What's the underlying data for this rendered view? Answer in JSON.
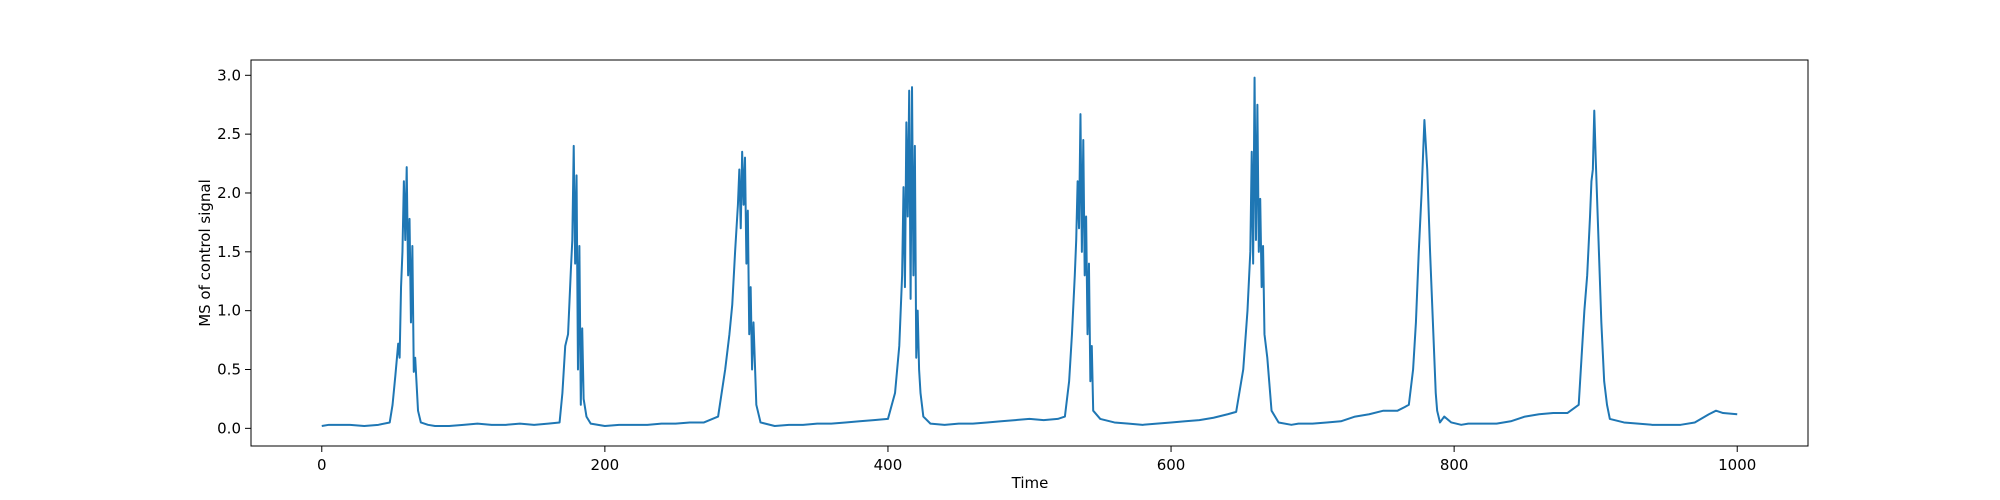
{
  "chart_data": {
    "type": "line",
    "x_label": "Time",
    "y_label": "MS of control signal",
    "color": "#1f77b4",
    "xlim": [
      -50,
      1050
    ],
    "ylim": [
      -0.15,
      3.13
    ],
    "xticks": [
      0,
      200,
      400,
      600,
      800,
      1000
    ],
    "yticks": [
      {
        "value": 0,
        "label": "0.0"
      },
      {
        "value": 0.5,
        "label": "0.5"
      },
      {
        "value": 1,
        "label": "1.0"
      },
      {
        "value": 1.5,
        "label": "1.5"
      },
      {
        "value": 2,
        "label": "2.0"
      },
      {
        "value": 2.5,
        "label": "2.5"
      },
      {
        "value": 3,
        "label": "3.0"
      }
    ],
    "x": [
      0,
      5,
      10,
      20,
      30,
      40,
      48,
      50,
      52,
      54,
      55,
      56,
      57,
      58,
      59,
      60,
      61,
      62,
      63,
      64,
      65,
      66,
      68,
      70,
      75,
      80,
      90,
      100,
      110,
      120,
      130,
      140,
      150,
      160,
      168,
      170,
      172,
      174,
      176,
      177,
      178,
      179,
      180,
      181,
      182,
      183,
      184,
      185,
      187,
      190,
      200,
      210,
      220,
      230,
      240,
      250,
      260,
      270,
      280,
      285,
      288,
      290,
      292,
      294,
      295,
      296,
      297,
      298,
      299,
      300,
      301,
      302,
      303,
      304,
      305,
      307,
      310,
      320,
      330,
      340,
      350,
      360,
      370,
      380,
      390,
      400,
      405,
      408,
      410,
      411,
      412,
      413,
      414,
      415,
      416,
      417,
      418,
      419,
      420,
      421,
      422,
      423,
      425,
      430,
      440,
      450,
      460,
      470,
      480,
      490,
      500,
      510,
      520,
      525,
      528,
      530,
      532,
      533,
      534,
      535,
      536,
      537,
      538,
      539,
      540,
      541,
      542,
      543,
      544,
      545,
      550,
      560,
      570,
      580,
      590,
      600,
      610,
      620,
      630,
      640,
      646,
      651,
      654,
      656,
      657,
      658,
      659,
      660,
      661,
      662,
      663,
      664,
      665,
      666,
      668,
      671,
      676,
      685,
      690,
      700,
      710,
      720,
      730,
      740,
      750,
      760,
      765,
      768,
      771,
      773,
      775,
      777,
      779,
      781,
      783,
      785,
      787,
      788,
      790,
      793,
      798,
      805,
      810,
      820,
      830,
      840,
      850,
      860,
      870,
      880,
      888,
      890,
      892,
      894,
      896,
      897,
      898,
      899,
      900,
      902,
      904,
      906,
      908,
      910,
      920,
      930,
      940,
      950,
      960,
      970,
      980,
      985,
      990,
      1000
    ],
    "values": [
      0.02,
      0.03,
      0.03,
      0.03,
      0.02,
      0.03,
      0.05,
      0.2,
      0.45,
      0.72,
      0.6,
      1.2,
      1.5,
      2.1,
      1.6,
      2.22,
      1.3,
      1.78,
      0.9,
      1.55,
      0.48,
      0.6,
      0.15,
      0.05,
      0.03,
      0.02,
      0.02,
      0.03,
      0.04,
      0.03,
      0.03,
      0.04,
      0.03,
      0.04,
      0.05,
      0.3,
      0.7,
      0.8,
      1.35,
      1.6,
      2.4,
      1.4,
      2.15,
      0.5,
      1.55,
      0.2,
      0.85,
      0.25,
      0.1,
      0.04,
      0.02,
      0.03,
      0.03,
      0.03,
      0.04,
      0.04,
      0.05,
      0.05,
      0.1,
      0.5,
      0.8,
      1.05,
      1.5,
      1.9,
      2.2,
      1.7,
      2.35,
      1.9,
      2.3,
      1.4,
      1.85,
      0.8,
      1.2,
      0.5,
      0.9,
      0.2,
      0.05,
      0.02,
      0.03,
      0.03,
      0.04,
      0.04,
      0.05,
      0.06,
      0.07,
      0.08,
      0.3,
      0.7,
      1.3,
      2.05,
      1.2,
      2.6,
      1.8,
      2.87,
      1.1,
      2.9,
      1.3,
      2.4,
      0.6,
      1.0,
      0.5,
      0.3,
      0.1,
      0.04,
      0.03,
      0.04,
      0.04,
      0.05,
      0.06,
      0.07,
      0.08,
      0.07,
      0.08,
      0.1,
      0.4,
      0.8,
      1.3,
      1.6,
      2.1,
      1.7,
      2.67,
      1.5,
      2.45,
      1.3,
      1.8,
      0.8,
      1.4,
      0.4,
      0.7,
      0.15,
      0.08,
      0.05,
      0.04,
      0.03,
      0.04,
      0.05,
      0.06,
      0.07,
      0.09,
      0.12,
      0.14,
      0.5,
      1.0,
      1.5,
      2.35,
      1.4,
      2.98,
      1.6,
      2.75,
      1.5,
      1.95,
      1.2,
      1.55,
      0.8,
      0.6,
      0.15,
      0.05,
      0.03,
      0.04,
      0.04,
      0.05,
      0.06,
      0.1,
      0.12,
      0.15,
      0.15,
      0.18,
      0.2,
      0.5,
      0.9,
      1.5,
      2.0,
      2.62,
      2.2,
      1.5,
      0.9,
      0.3,
      0.15,
      0.05,
      0.1,
      0.05,
      0.03,
      0.04,
      0.04,
      0.04,
      0.06,
      0.1,
      0.12,
      0.13,
      0.13,
      0.2,
      0.6,
      1.0,
      1.3,
      1.8,
      2.1,
      2.2,
      2.7,
      2.3,
      1.6,
      0.9,
      0.4,
      0.2,
      0.08,
      0.05,
      0.04,
      0.03,
      0.03,
      0.03,
      0.05,
      0.12,
      0.15,
      0.13,
      0.12
    ]
  }
}
